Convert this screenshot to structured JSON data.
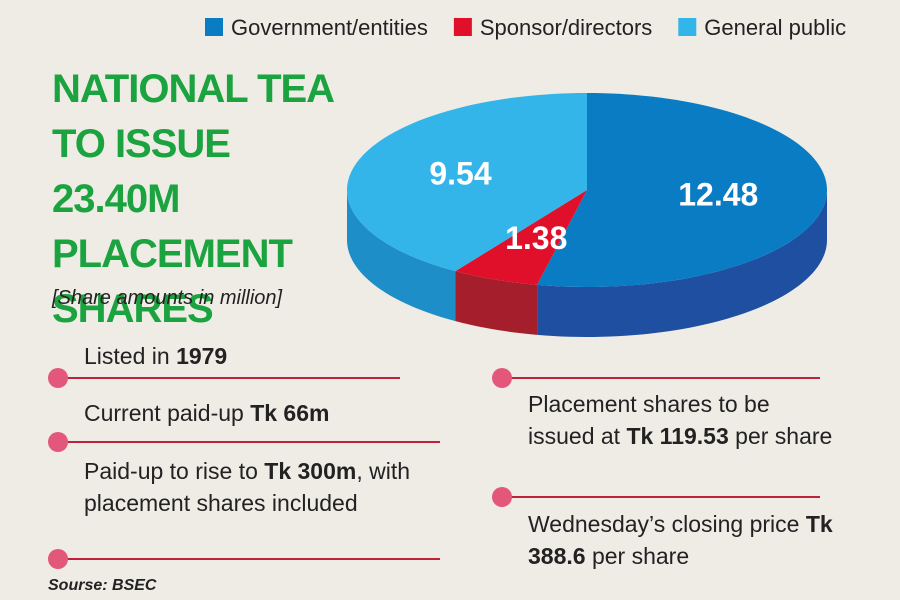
{
  "chart_data": {
    "type": "pie",
    "title": "NATIONAL TEA TO ISSUE 23.40M PLACEMENT SHARES",
    "subtitle": "[Share amounts in million]",
    "categories": [
      "Government/entities",
      "Sponsor/directors",
      "General public"
    ],
    "values": [
      12.48,
      1.38,
      9.54
    ],
    "colors": [
      "#0a7cc4",
      "#e0102a",
      "#33b5ea"
    ],
    "side_colors": [
      "#1f4fa0",
      "#a41e2b",
      "#1e8ec8"
    ]
  },
  "notes": [
    {
      "text": "Listed in ",
      "bold": "1979"
    },
    {
      "text": "Current paid-up ",
      "bold": "Tk 66m"
    },
    {
      "text": "Paid-up to rise to ",
      "bold": "Tk 300m",
      "after": ", with placement shares included"
    },
    {
      "text": "Placement shares to be issued at ",
      "bold": "Tk 119.53",
      "after": " per share"
    },
    {
      "text": "Wednesday’s closing price ",
      "bold": "Tk 388.6",
      "after": " per share"
    }
  ],
  "source": "Sourse: BSEC"
}
